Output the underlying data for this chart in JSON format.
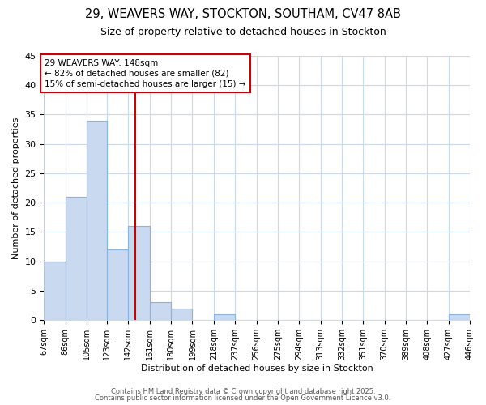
{
  "title_line1": "29, WEAVERS WAY, STOCKTON, SOUTHAM, CV47 8AB",
  "title_line2": "Size of property relative to detached houses in Stockton",
  "bins": [
    67,
    86,
    105,
    123,
    142,
    161,
    180,
    199,
    218,
    237,
    256,
    275,
    294,
    313,
    332,
    351,
    370,
    389,
    408,
    427,
    446
  ],
  "counts": [
    10,
    21,
    34,
    12,
    16,
    3,
    2,
    0,
    1,
    0,
    0,
    0,
    0,
    0,
    0,
    0,
    0,
    0,
    0,
    1
  ],
  "vline_x": 148,
  "xlabel": "Distribution of detached houses by size in Stockton",
  "ylabel": "Number of detached properties",
  "ylim": [
    0,
    45
  ],
  "yticks": [
    0,
    5,
    10,
    15,
    20,
    25,
    30,
    35,
    40,
    45
  ],
  "bar_color": "#c8d9f0",
  "bar_edgecolor": "#8ab4e0",
  "vline_color": "#cc0000",
  "annotation_text": "29 WEAVERS WAY: 148sqm\n← 82% of detached houses are smaller (82)\n15% of semi-detached houses are larger (15) →",
  "annotation_box_edgecolor": "#cc0000",
  "background_color": "#ffffff",
  "grid_color": "#c8d9f0",
  "footnote1": "Contains HM Land Registry data © Crown copyright and database right 2025.",
  "footnote2": "Contains public sector information licensed under the Open Government Licence v3.0."
}
